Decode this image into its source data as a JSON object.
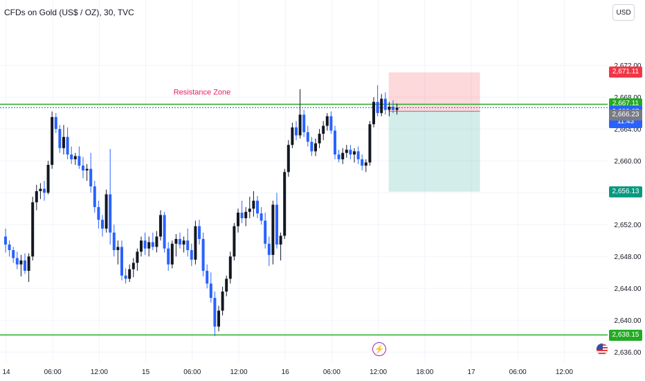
{
  "header": {
    "title": "CFDs on Gold (US$ / OZ), 30, TVC",
    "currency": "USD"
  },
  "colors": {
    "up": "#131722",
    "down": "#2962ff",
    "level": "#22ab22",
    "annotation": "#e91e63"
  },
  "events": {
    "bolt_icon": "⚡"
  },
  "chart_data": {
    "type": "candlestick",
    "title": "CFDs on Gold (US$ / OZ), 30, TVC",
    "y_axis": {
      "side": "right",
      "ylim": [
        2635.5,
        2674.8
      ],
      "ticks": [
        "2,672.00",
        "2,668.00",
        "2,664.00",
        "2,660.00",
        "2,656.00",
        "2,652.00",
        "2,648.00",
        "2,644.00",
        "2,640.00",
        "2,636.00"
      ]
    },
    "x_axis": {
      "ticks": [
        "14",
        "06:00",
        "12:00",
        "15",
        "06:00",
        "12:00",
        "16",
        "06:00",
        "12:00",
        "18:00",
        "17",
        "06:00",
        "12:00"
      ]
    },
    "price_labels": [
      {
        "value": "2,671.11",
        "color": "#f23645"
      },
      {
        "value": "2,667.11",
        "color": "#22ab22"
      },
      {
        "value": "2,666.67",
        "color": "#2962ff",
        "sub": "11:43"
      },
      {
        "value": "2,666.23",
        "color": "#787b86"
      },
      {
        "value": "2,656.13",
        "color": "#089981"
      },
      {
        "value": "2,638.15",
        "color": "#22ab22"
      }
    ],
    "horizontal_lines": [
      {
        "price": 2667.11,
        "label": "Resistance Zone"
      },
      {
        "price": 2638.15
      }
    ],
    "position": {
      "type": "short",
      "entry": 2666.23,
      "stop": 2671.11,
      "target": 2656.13
    },
    "candles": [
      [
        2650.5,
        2651.5,
        2648.5,
        2649.5
      ],
      [
        2649.5,
        2650.0,
        2648.0,
        2648.8
      ],
      [
        2648.8,
        2649.2,
        2647.2,
        2647.8
      ],
      [
        2647.8,
        2648.6,
        2646.4,
        2647.0
      ],
      [
        2647.0,
        2648.2,
        2645.5,
        2647.5
      ],
      [
        2647.5,
        2648.4,
        2645.8,
        2646.2
      ],
      [
        2646.2,
        2648.4,
        2644.8,
        2648.0
      ],
      [
        2648.0,
        2655.5,
        2647.5,
        2654.8
      ],
      [
        2654.8,
        2657.0,
        2653.8,
        2656.2
      ],
      [
        2656.2,
        2657.2,
        2655.2,
        2656.5
      ],
      [
        2656.5,
        2657.5,
        2655.0,
        2656.0
      ],
      [
        2656.0,
        2660.0,
        2655.8,
        2659.5
      ],
      [
        2659.5,
        2666.2,
        2659.0,
        2665.5
      ],
      [
        2665.5,
        2666.0,
        2663.5,
        2664.0
      ],
      [
        2664.0,
        2664.5,
        2661.0,
        2661.6
      ],
      [
        2661.6,
        2664.5,
        2660.8,
        2663.0
      ],
      [
        2663.0,
        2664.2,
        2660.2,
        2660.8
      ],
      [
        2660.8,
        2661.8,
        2659.6,
        2660.2
      ],
      [
        2660.2,
        2661.0,
        2659.5,
        2660.6
      ],
      [
        2660.6,
        2661.8,
        2659.0,
        2659.4
      ],
      [
        2659.4,
        2660.5,
        2657.8,
        2658.8
      ],
      [
        2658.8,
        2659.6,
        2657.5,
        2659.0
      ],
      [
        2659.0,
        2661.0,
        2656.0,
        2656.8
      ],
      [
        2656.8,
        2657.5,
        2653.5,
        2654.2
      ],
      [
        2654.2,
        2655.0,
        2651.5,
        2652.6
      ],
      [
        2652.6,
        2653.2,
        2650.5,
        2651.5
      ],
      [
        2651.5,
        2656.4,
        2651.0,
        2655.8
      ],
      [
        2655.8,
        2661.5,
        2649.5,
        2651.0
      ],
      [
        2651.0,
        2652.0,
        2648.0,
        2648.8
      ],
      [
        2648.8,
        2650.0,
        2647.0,
        2649.2
      ],
      [
        2649.2,
        2650.0,
        2645.0,
        2645.6
      ],
      [
        2645.6,
        2646.5,
        2644.6,
        2645.2
      ],
      [
        2645.2,
        2647.0,
        2644.8,
        2646.4
      ],
      [
        2646.4,
        2647.8,
        2645.4,
        2647.2
      ],
      [
        2647.2,
        2649.0,
        2646.2,
        2648.6
      ],
      [
        2648.6,
        2650.5,
        2648.0,
        2650.0
      ],
      [
        2650.0,
        2651.0,
        2648.2,
        2649.0
      ],
      [
        2649.0,
        2650.5,
        2648.0,
        2649.8
      ],
      [
        2649.8,
        2651.0,
        2648.8,
        2649.2
      ],
      [
        2649.2,
        2651.2,
        2648.5,
        2650.5
      ],
      [
        2650.5,
        2653.8,
        2650.0,
        2653.2
      ],
      [
        2653.2,
        2653.6,
        2648.5,
        2649.0
      ],
      [
        2649.0,
        2649.8,
        2646.2,
        2647.0
      ],
      [
        2647.0,
        2650.0,
        2646.5,
        2649.6
      ],
      [
        2649.6,
        2650.8,
        2648.0,
        2650.2
      ],
      [
        2650.2,
        2651.0,
        2649.0,
        2649.5
      ],
      [
        2649.5,
        2650.5,
        2648.5,
        2650.0
      ],
      [
        2650.0,
        2651.5,
        2648.0,
        2648.8
      ],
      [
        2648.8,
        2649.6,
        2646.8,
        2647.6
      ],
      [
        2647.6,
        2652.5,
        2647.0,
        2651.8
      ],
      [
        2651.8,
        2652.6,
        2649.5,
        2650.2
      ],
      [
        2650.2,
        2651.0,
        2645.5,
        2646.2
      ],
      [
        2646.2,
        2647.0,
        2644.0,
        2644.6
      ],
      [
        2644.6,
        2646.0,
        2642.2,
        2642.8
      ],
      [
        2642.8,
        2643.6,
        2638.0,
        2639.2
      ],
      [
        2639.2,
        2641.8,
        2638.6,
        2641.2
      ],
      [
        2641.2,
        2644.2,
        2640.6,
        2643.6
      ],
      [
        2643.6,
        2645.6,
        2643.0,
        2645.2
      ],
      [
        2645.2,
        2648.6,
        2644.6,
        2648.0
      ],
      [
        2648.0,
        2652.2,
        2647.5,
        2651.8
      ],
      [
        2651.8,
        2654.0,
        2651.0,
        2653.5
      ],
      [
        2653.5,
        2655.0,
        2652.2,
        2652.8
      ],
      [
        2652.8,
        2654.2,
        2651.8,
        2653.6
      ],
      [
        2653.6,
        2655.5,
        2652.8,
        2654.0
      ],
      [
        2654.0,
        2656.2,
        2653.0,
        2655.0
      ],
      [
        2655.0,
        2655.6,
        2652.8,
        2653.4
      ],
      [
        2653.4,
        2654.2,
        2652.0,
        2652.5
      ],
      [
        2652.5,
        2653.5,
        2649.0,
        2649.6
      ],
      [
        2649.6,
        2650.5,
        2646.8,
        2648.2
      ],
      [
        2648.2,
        2655.0,
        2647.0,
        2654.5
      ],
      [
        2654.5,
        2656.0,
        2649.0,
        2649.5
      ],
      [
        2649.5,
        2651.0,
        2647.5,
        2650.6
      ],
      [
        2650.6,
        2659.0,
        2650.2,
        2658.6
      ],
      [
        2658.6,
        2662.6,
        2658.0,
        2662.0
      ],
      [
        2662.0,
        2664.8,
        2661.6,
        2664.2
      ],
      [
        2664.2,
        2665.0,
        2662.6,
        2663.2
      ],
      [
        2663.2,
        2669.0,
        2662.8,
        2665.8
      ],
      [
        2665.8,
        2666.4,
        2663.0,
        2663.6
      ],
      [
        2663.6,
        2664.4,
        2661.8,
        2662.4
      ],
      [
        2662.4,
        2663.0,
        2660.6,
        2661.2
      ],
      [
        2661.2,
        2662.8,
        2660.6,
        2662.2
      ],
      [
        2662.2,
        2664.0,
        2661.6,
        2663.4
      ],
      [
        2663.4,
        2665.0,
        2662.6,
        2664.4
      ],
      [
        2664.4,
        2666.0,
        2663.8,
        2665.6
      ],
      [
        2665.6,
        2666.2,
        2663.4,
        2663.8
      ],
      [
        2663.8,
        2664.4,
        2660.2,
        2660.8
      ],
      [
        2660.8,
        2661.4,
        2659.8,
        2660.2
      ],
      [
        2660.2,
        2661.6,
        2659.6,
        2661.0
      ],
      [
        2661.0,
        2662.0,
        2660.4,
        2661.4
      ],
      [
        2661.4,
        2662.0,
        2660.2,
        2660.8
      ],
      [
        2660.8,
        2661.6,
        2659.8,
        2661.2
      ],
      [
        2661.2,
        2661.8,
        2659.6,
        2660.2
      ],
      [
        2660.2,
        2660.8,
        2658.8,
        2659.4
      ],
      [
        2659.4,
        2660.2,
        2658.6,
        2659.8
      ],
      [
        2659.8,
        2665.0,
        2659.4,
        2664.6
      ],
      [
        2664.6,
        2668.0,
        2664.2,
        2667.4
      ],
      [
        2667.4,
        2669.5,
        2665.6,
        2666.0
      ],
      [
        2666.0,
        2668.4,
        2665.6,
        2667.8
      ],
      [
        2667.8,
        2668.6,
        2665.8,
        2666.4
      ],
      [
        2666.4,
        2667.4,
        2665.6,
        2666.8
      ],
      [
        2666.8,
        2667.6,
        2666.0,
        2666.4
      ],
      [
        2666.4,
        2667.2,
        2665.8,
        2666.67
      ]
    ]
  }
}
